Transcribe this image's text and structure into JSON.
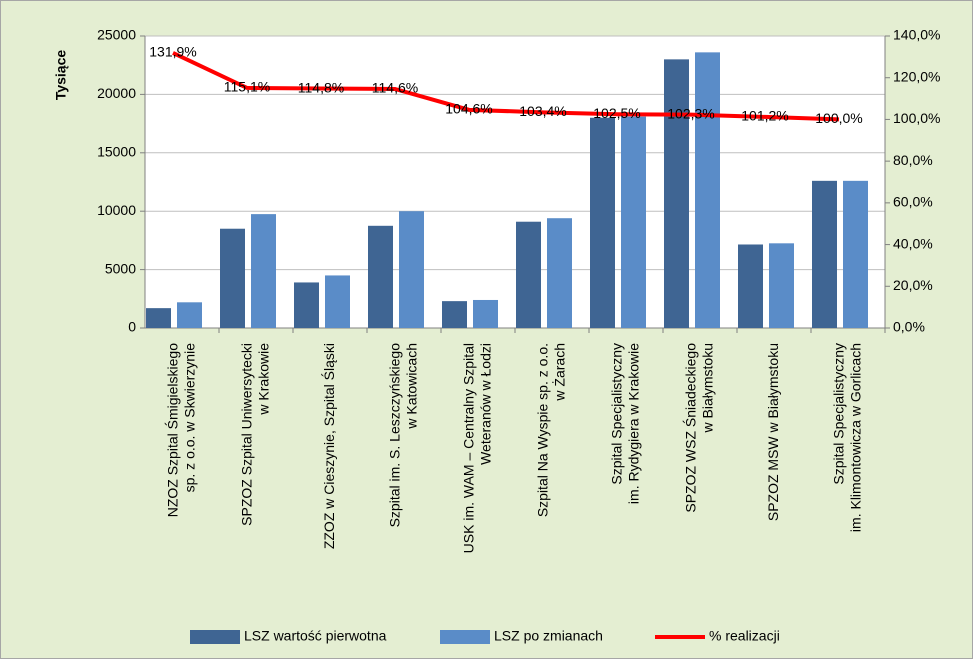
{
  "chart_data": {
    "type": "bar",
    "y_axis_label": "Tysiące",
    "categories": [
      "NZOZ Szpital Śmigielskiego\nsp. z o.o. w Skwierzynie",
      "SPZOZ Szpital Uniwersytecki\nw Krakowie",
      "ZZOZ w Cieszynie, Szpital Śląski",
      "Szpital im. S. Leszczyńskiego\nw Katowicach",
      "USK im. WAM – Centralny Szpital\nWeteranów w Łodzi",
      "Szpital Na Wyspie sp. z o.o.\nw Żarach",
      "Szpital Specjalistyczny\nim. Rydygiera w Krakowie",
      "SPZOZ WSZ Śniadeckiego\nw Białymstoku",
      "SPZOZ MSW w Białymstoku",
      "Szpital Specjalistyczny\nim. Klimontowicza w Gorlicach"
    ],
    "series": [
      {
        "name": "LSZ wartość pierwotna",
        "color": "#3f6593",
        "values": [
          1700,
          8500,
          3900,
          8750,
          2300,
          9100,
          18000,
          23000,
          7150,
          12600
        ]
      },
      {
        "name": "LSZ po zmianach",
        "color": "#5a8cc8",
        "values": [
          2200,
          9750,
          4500,
          10000,
          2400,
          9400,
          18100,
          23600,
          7250,
          12600
        ]
      },
      {
        "name": "% realizacji",
        "type": "line",
        "axis": "y2",
        "color": "#ff0000",
        "values": [
          131.9,
          115.1,
          114.8,
          114.6,
          104.6,
          103.4,
          102.5,
          102.3,
          101.2,
          100.0
        ],
        "value_labels": [
          "131,9%",
          "115,1%",
          "114,8%",
          "114,6%",
          "104,6%",
          "103,4%",
          "102,5%",
          "102,3%",
          "101,2%",
          "100,0%"
        ]
      }
    ],
    "ylim": [
      0,
      25000
    ],
    "yticks": [
      0,
      5000,
      10000,
      15000,
      20000,
      25000
    ],
    "y2lim": [
      0,
      140
    ],
    "y2ticks": [
      {
        "value": 0,
        "label": "0,0%"
      },
      {
        "value": 20,
        "label": "20,0%"
      },
      {
        "value": 40,
        "label": "40,0%"
      },
      {
        "value": 60,
        "label": "60,0%"
      },
      {
        "value": 80,
        "label": "80,0%"
      },
      {
        "value": 100,
        "label": "100,0%"
      },
      {
        "value": 120,
        "label": "120,0%"
      },
      {
        "value": 140,
        "label": "140,0%"
      }
    ],
    "grid": true,
    "legend": "bottom"
  }
}
